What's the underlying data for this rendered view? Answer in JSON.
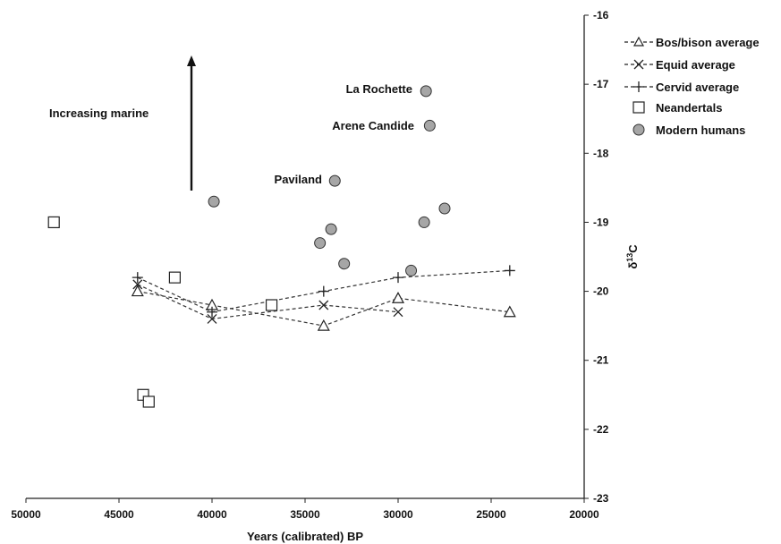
{
  "chart_data": {
    "type": "scatter",
    "title": "",
    "xlabel": "Years (calibrated) BP",
    "ylabel_main": "δ",
    "ylabel_sup": "13",
    "ylabel_end": "C",
    "xlim": [
      50000,
      20000
    ],
    "ylim": [
      -23,
      -16
    ],
    "x_reversed": true,
    "y_axis_side": "right",
    "grid": false,
    "legend_position": "top-right",
    "x_ticks": [
      {
        "value": 50000,
        "label": "50000"
      },
      {
        "value": 45000,
        "label": "45000"
      },
      {
        "value": 40000,
        "label": "40000"
      },
      {
        "value": 35000,
        "label": "35000"
      },
      {
        "value": 30000,
        "label": "30000"
      },
      {
        "value": 25000,
        "label": "25000"
      },
      {
        "value": 20000,
        "label": "20000"
      }
    ],
    "y_ticks": [
      {
        "value": -16,
        "label": "-16"
      },
      {
        "value": -17,
        "label": "-17"
      },
      {
        "value": -18,
        "label": "-18"
      },
      {
        "value": -19,
        "label": "-19"
      },
      {
        "value": -20,
        "label": "-20"
      },
      {
        "value": -21,
        "label": "-21"
      },
      {
        "value": -22,
        "label": "-22"
      },
      {
        "value": -23,
        "label": "-23"
      }
    ],
    "series": [
      {
        "name": "Bos/bison average",
        "marker": "triangle",
        "line": "dashed",
        "points": [
          [
            44000,
            -20.0
          ],
          [
            40000,
            -20.2
          ],
          [
            34000,
            -20.5
          ],
          [
            30000,
            -20.1
          ],
          [
            24000,
            -20.3
          ]
        ]
      },
      {
        "name": "Equid average",
        "marker": "x",
        "line": "dashed",
        "points": [
          [
            44000,
            -19.9
          ],
          [
            40000,
            -20.4
          ],
          [
            34000,
            -20.2
          ],
          [
            30000,
            -20.3
          ]
        ]
      },
      {
        "name": "Cervid average",
        "marker": "plus",
        "line": "dashed",
        "points": [
          [
            44000,
            -19.8
          ],
          [
            40000,
            -20.3
          ],
          [
            34000,
            -20.0
          ],
          [
            30000,
            -19.8
          ],
          [
            24000,
            -19.7
          ]
        ]
      },
      {
        "name": "Neandertals",
        "marker": "square",
        "line": "none",
        "points": [
          [
            48500,
            -19.0
          ],
          [
            42000,
            -19.8
          ],
          [
            36800,
            -20.2
          ],
          [
            43700,
            -21.5
          ],
          [
            43400,
            -21.6
          ]
        ]
      },
      {
        "name": "Modern humans",
        "marker": "circle",
        "line": "none",
        "color": "#a6a6a6",
        "points": [
          [
            39900,
            -18.7
          ],
          [
            34200,
            -19.3
          ],
          [
            33600,
            -19.1
          ],
          [
            32900,
            -19.6
          ],
          [
            33400,
            -18.4
          ],
          [
            29300,
            -19.7
          ],
          [
            28600,
            -19.0
          ],
          [
            27500,
            -18.8
          ],
          [
            28500,
            -17.1
          ],
          [
            28300,
            -17.6
          ]
        ]
      }
    ],
    "annotations": [
      {
        "text": "Increasing marine",
        "anchor": "arrow-up"
      },
      {
        "text": "La Rochette"
      },
      {
        "text": "Arene Candide"
      },
      {
        "text": "Paviland"
      }
    ]
  }
}
